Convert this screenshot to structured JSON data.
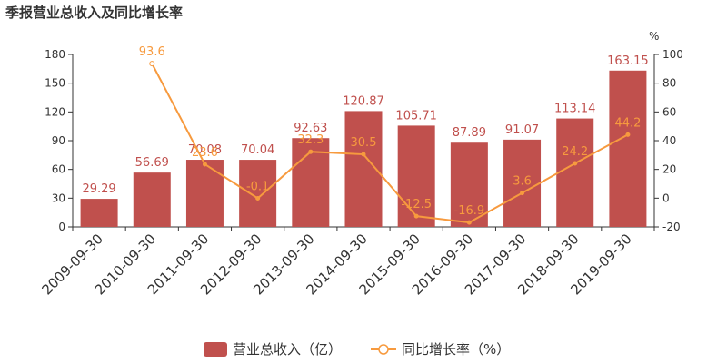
{
  "chart_data": {
    "type": "bar",
    "title": "季报营业总收入及同比增长率",
    "categories": [
      "2009-09-30",
      "2010-09-30",
      "2011-09-30",
      "2012-09-30",
      "2013-09-30",
      "2014-09-30",
      "2015-09-30",
      "2016-09-30",
      "2017-09-30",
      "2018-09-30",
      "2019-09-30"
    ],
    "series": [
      {
        "name": "营业总收入（亿）",
        "type": "bar",
        "axis": "left",
        "values": [
          29.29,
          56.69,
          70.08,
          70.04,
          92.63,
          120.87,
          105.71,
          87.89,
          91.07,
          113.14,
          163.15
        ],
        "labels": [
          "29.29",
          "56.69",
          "70.08",
          "70.04",
          "92.63",
          "120.87",
          "105.71",
          "87.89",
          "91.07",
          "113.14",
          "163.15"
        ]
      },
      {
        "name": "同比增长率（%）",
        "type": "line",
        "axis": "right",
        "values": [
          null,
          93.6,
          23.6,
          -0.1,
          32.3,
          30.5,
          -12.5,
          -16.9,
          3.6,
          24.2,
          44.2
        ],
        "labels": [
          "",
          "93.6",
          "23.6",
          "-0.1",
          "32.3",
          "30.5",
          "-12.5",
          "-16.9",
          "3.6",
          "24.2",
          "44.2"
        ]
      }
    ],
    "y_left": {
      "min": 0,
      "max": 180,
      "ticks": [
        "0",
        "30",
        "60",
        "90",
        "120",
        "150",
        "180"
      ]
    },
    "y_right": {
      "min": -20,
      "max": 100,
      "unit": "%",
      "ticks": [
        "-20",
        "0",
        "20",
        "40",
        "60",
        "80",
        "100"
      ]
    },
    "grid": false,
    "legend_position": "bottom-center",
    "colors": {
      "bar": "#c0504d",
      "line": "#f79a3e",
      "text": "#333333",
      "axis": "#333333"
    }
  }
}
